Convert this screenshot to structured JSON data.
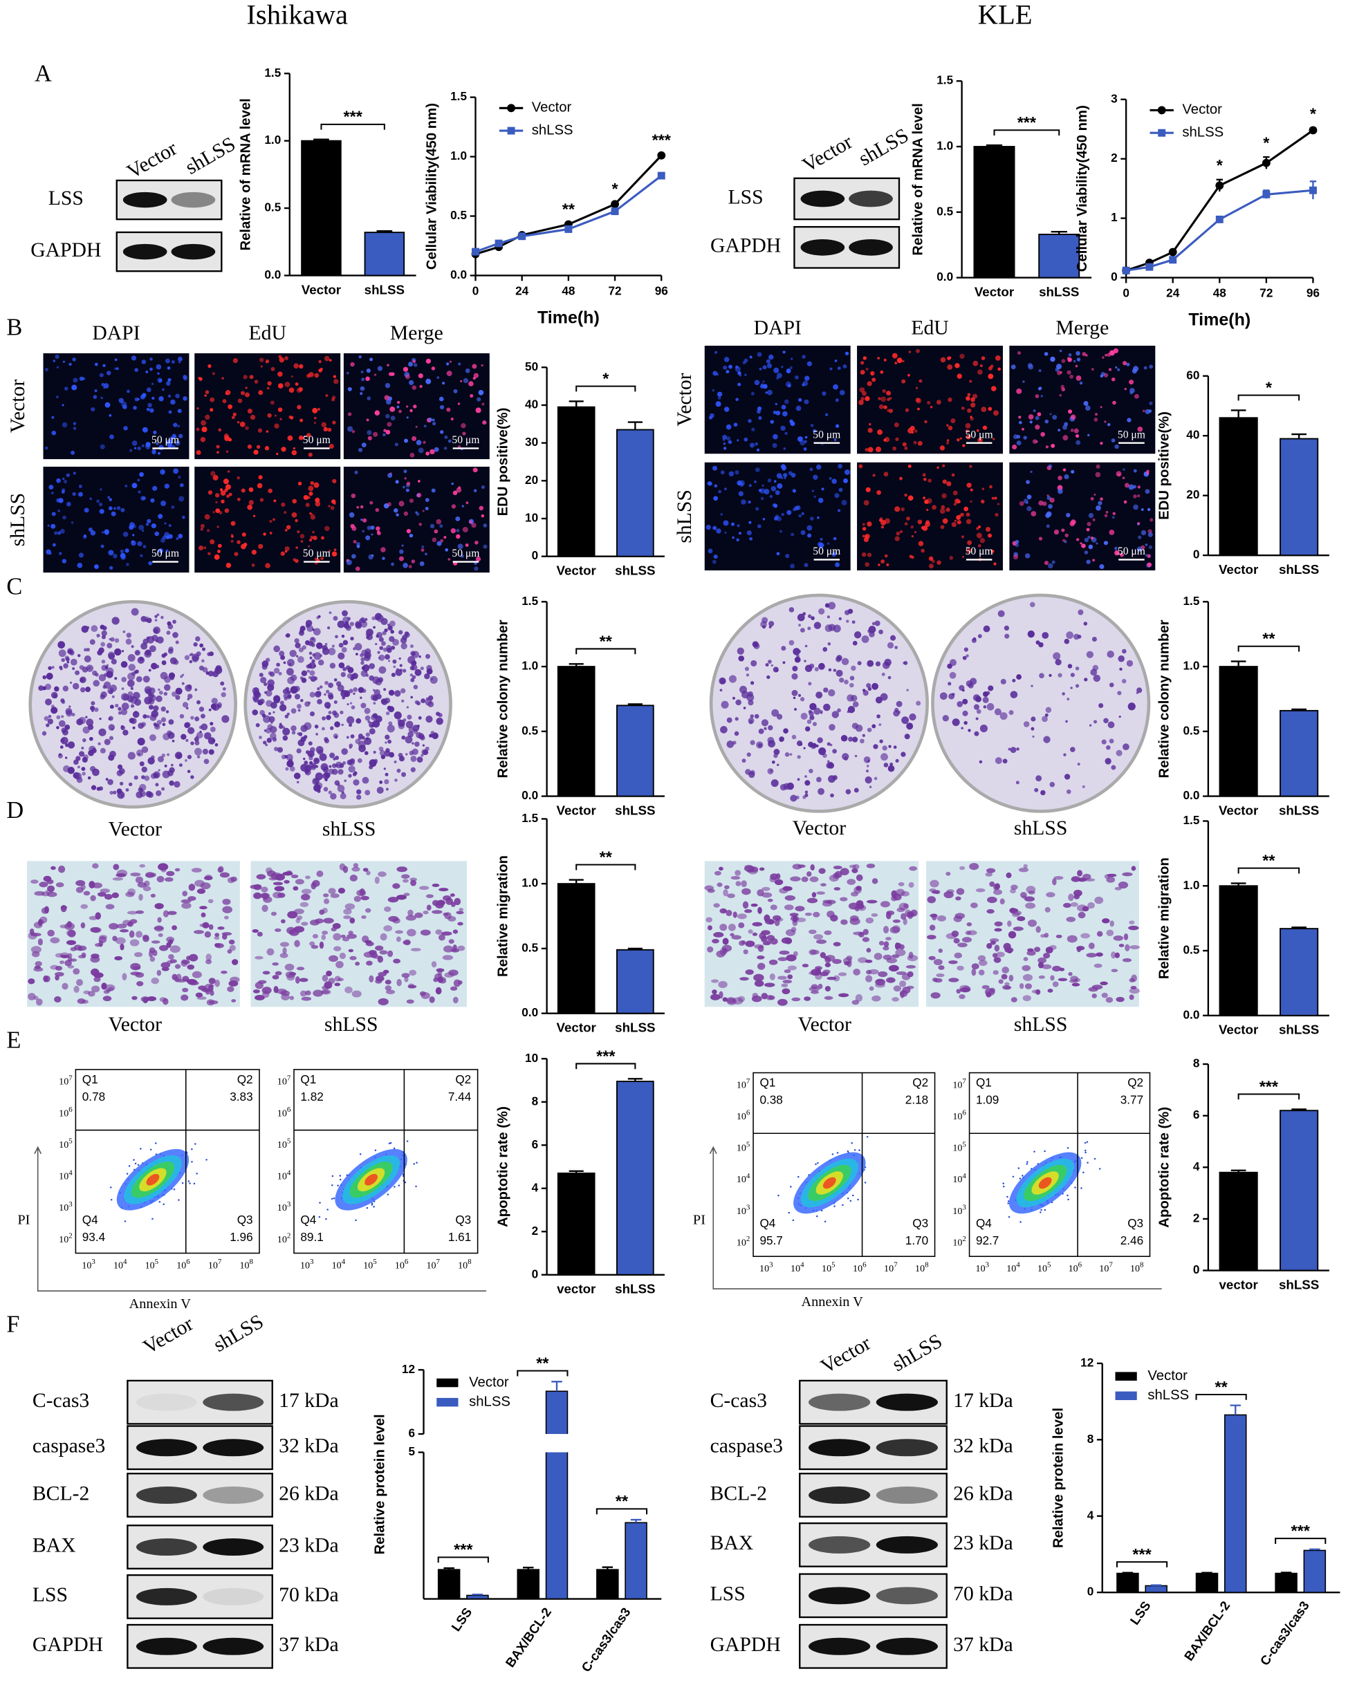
{
  "headers": [
    "Ishikawa",
    "KLE"
  ],
  "panels": [
    "A",
    "B",
    "C",
    "D",
    "E",
    "F"
  ],
  "sides": [
    {
      "blot_a": {
        "lanes": [
          "Vector",
          "shLSS"
        ],
        "rows": [
          "LSS",
          "GAPDH"
        ]
      },
      "micro": {
        "columns": [
          "DAPI",
          "EdU",
          "Merge"
        ],
        "rows": [
          "Vector",
          "shLSS"
        ],
        "scale": "50 μm"
      },
      "colony_labels": [
        "Vector",
        "shLSS"
      ],
      "migration_labels": [
        "Vector",
        "shLSS"
      ],
      "flow_axis_labels": {
        "y": "PI",
        "x": "Annexin V"
      },
      "flow": [
        {
          "quadrants": [
            {
              "name": "Q1",
              "value": 0.78
            },
            {
              "name": "Q2",
              "value": 3.83
            },
            {
              "name": "Q3",
              "value": 1.96
            },
            {
              "name": "Q4",
              "value": 93.4
            }
          ]
        },
        {
          "quadrants": [
            {
              "name": "Q1",
              "value": 1.82
            },
            {
              "name": "Q2",
              "value": 7.44
            },
            {
              "name": "Q3",
              "value": 1.61
            },
            {
              "name": "Q4",
              "value": 89.1
            }
          ]
        }
      ],
      "blot_f": {
        "lanes": [
          "Vector",
          "shLSS"
        ],
        "rows": [
          {
            "name": "C-cas3",
            "size": "17 kDa"
          },
          {
            "name": "caspase3",
            "size": "32 kDa"
          },
          {
            "name": "BCL-2",
            "size": "26 kDa"
          },
          {
            "name": "BAX",
            "size": "23 kDa"
          },
          {
            "name": "LSS",
            "size": "70 kDa"
          },
          {
            "name": "GAPDH",
            "size": "37 kDa"
          }
        ]
      }
    },
    {
      "blot_a": {
        "lanes": [
          "Vector",
          "shLSS"
        ],
        "rows": [
          "LSS",
          "GAPDH"
        ]
      },
      "micro": {
        "columns": [
          "DAPI",
          "EdU",
          "Merge"
        ],
        "rows": [
          "Vector",
          "shLSS"
        ],
        "scale": "50 μm"
      },
      "colony_labels": [
        "Vector",
        "shLSS"
      ],
      "migration_labels": [
        "Vector",
        "shLSS"
      ],
      "flow_axis_labels": {
        "y": "PI",
        "x": "Annexin V"
      },
      "flow": [
        {
          "quadrants": [
            {
              "name": "Q1",
              "value": 0.38
            },
            {
              "name": "Q2",
              "value": 2.18
            },
            {
              "name": "Q3",
              "value": 1.7,
              "label": "1.70"
            },
            {
              "name": "Q4",
              "value": 95.7
            }
          ]
        },
        {
          "quadrants": [
            {
              "name": "Q1",
              "value": 1.09
            },
            {
              "name": "Q2",
              "value": 3.77
            },
            {
              "name": "Q3",
              "value": 2.46
            },
            {
              "name": "Q4",
              "value": 92.7
            }
          ]
        }
      ],
      "blot_f": {
        "lanes": [
          "Vector",
          "shLSS"
        ],
        "rows": [
          {
            "name": "C-cas3",
            "size": "17 kDa"
          },
          {
            "name": "caspase3",
            "size": "32 kDa"
          },
          {
            "name": "BCL-2",
            "size": "26 kDa"
          },
          {
            "name": "BAX",
            "size": "23 kDa"
          },
          {
            "name": "LSS",
            "size": "70 kDa"
          },
          {
            "name": "GAPDH",
            "size": "37 kDa"
          }
        ]
      }
    }
  ],
  "flow_axis": {
    "base": "10",
    "y_exponents": [
      2,
      3,
      4,
      5,
      6,
      7
    ],
    "x_exponents": [
      3,
      4,
      5,
      6,
      7,
      8
    ]
  },
  "chart_data": [
    {
      "type": "bar",
      "ylabel": "Relative of mRNA level",
      "categories": [
        "Vector",
        "shLSS"
      ],
      "values": [
        1.0,
        0.32
      ],
      "errors": [
        0.01,
        0.01
      ],
      "colors": [
        "#000000",
        "#3a5bbf"
      ],
      "ylim": [
        0,
        1.5
      ],
      "yticks": [
        {
          "value": 0,
          "label": "0.0"
        },
        0.5,
        {
          "value": 1,
          "label": "1.0"
        },
        1.5
      ],
      "significance": "***"
    },
    {
      "type": "line",
      "ylabel": "Cellular Viability(450 nm)",
      "xlabel": "Time(h)",
      "x": [
        0,
        12,
        24,
        48,
        72,
        96
      ],
      "xlim": [
        0,
        96
      ],
      "xticks": [
        0,
        24,
        48,
        72,
        96
      ],
      "ylim": [
        0,
        1.5
      ],
      "yticks": [
        {
          "value": 0,
          "label": "0.0"
        },
        0.5,
        {
          "value": 1,
          "label": "1.0"
        },
        1.5
      ],
      "legend": "upper left",
      "series": [
        {
          "name": "Vector",
          "color": "#000000",
          "marker": "circle",
          "values": [
            0.18,
            0.24,
            0.34,
            0.43,
            0.6,
            1.01
          ],
          "errors": [
            0.01,
            0.01,
            0.01,
            0.01,
            0.01,
            0.01
          ]
        },
        {
          "name": "shLSS",
          "color": "#3a5bbf",
          "marker": "square",
          "values": [
            0.2,
            0.27,
            0.33,
            0.39,
            0.54,
            0.84
          ],
          "errors": [
            0.01,
            0.01,
            0.01,
            0.01,
            0.01,
            0.01
          ]
        }
      ],
      "annotations": [
        {
          "x": 48,
          "label": "**"
        },
        {
          "x": 72,
          "label": "*"
        },
        {
          "x": 96,
          "label": "***"
        }
      ]
    },
    {
      "type": "bar",
      "ylabel": "EDU positive(%)",
      "categories": [
        "Vector",
        "shLSS"
      ],
      "values": [
        39.5,
        33.5
      ],
      "errors": [
        1.5,
        2
      ],
      "colors": [
        "#000000",
        "#3a5bbf"
      ],
      "ylim": [
        0,
        50
      ],
      "yticks": [
        0,
        10,
        20,
        30,
        40,
        50
      ],
      "significance": "*"
    },
    {
      "type": "bar",
      "ylabel": "Relative colony number",
      "categories": [
        "Vector",
        "shLSS"
      ],
      "values": [
        1.0,
        0.7
      ],
      "errors": [
        0.02,
        0.01
      ],
      "colors": [
        "#000000",
        "#3a5bbf"
      ],
      "ylim": [
        0,
        1.5
      ],
      "yticks": [
        {
          "value": 0,
          "label": "0.0"
        },
        0.5,
        {
          "value": 1,
          "label": "1.0"
        },
        1.5
      ],
      "significance": "**"
    },
    {
      "type": "bar",
      "ylabel": "Relative migration",
      "categories": [
        "Vector",
        "shLSS"
      ],
      "values": [
        1.0,
        0.49
      ],
      "errors": [
        0.03,
        0.01
      ],
      "colors": [
        "#000000",
        "#3a5bbf"
      ],
      "ylim": [
        0,
        1.5
      ],
      "yticks": [
        {
          "value": 0,
          "label": "0.0"
        },
        0.5,
        {
          "value": 1,
          "label": "1.0"
        },
        1.5
      ],
      "significance": "**"
    },
    {
      "type": "bar",
      "ylabel": "Apoptotic rate (%)",
      "categories": [
        "vector",
        "shLSS"
      ],
      "values": [
        4.7,
        8.95
      ],
      "errors": [
        0.1,
        0.12
      ],
      "colors": [
        "#000000",
        "#3a5bbf"
      ],
      "ylim": [
        0,
        10
      ],
      "yticks": [
        0,
        2,
        4,
        6,
        8,
        10
      ],
      "significance": "***"
    },
    {
      "type": "grouped_bar",
      "ylabel": "Relative protein level",
      "categories": [
        "LSS",
        "BAX/BCL-2",
        "C-cas3/cas3"
      ],
      "ylim": [
        0,
        12
      ],
      "ybreak": [
        5,
        6
      ],
      "yticks": [
        5,
        6,
        12
      ],
      "legend": "upper left",
      "series": [
        {
          "name": "Vector",
          "color": "#000000",
          "values": [
            1,
            1,
            1
          ],
          "errors": [
            0.05,
            0.07,
            0.08
          ]
        },
        {
          "name": "shLSS",
          "color": "#3a5bbf",
          "values": [
            0.12,
            10,
            2.6
          ],
          "errors": [
            0.03,
            0.9,
            0.1
          ]
        }
      ],
      "significance": [
        "***",
        "**",
        "**"
      ]
    },
    {
      "type": "bar",
      "ylabel": "Relative of mRNA level",
      "categories": [
        "Vector",
        "shLSS"
      ],
      "values": [
        1.0,
        0.33
      ],
      "errors": [
        0.01,
        0.02
      ],
      "colors": [
        "#000000",
        "#3a5bbf"
      ],
      "ylim": [
        0,
        1.5
      ],
      "yticks": [
        {
          "value": 0,
          "label": "0.0"
        },
        0.5,
        {
          "value": 1,
          "label": "1.0"
        },
        1.5
      ],
      "significance": "***"
    },
    {
      "type": "line",
      "ylabel": "Cellular Viability(450 nm)",
      "xlabel": "Time(h)",
      "x": [
        0,
        12,
        24,
        48,
        72,
        96
      ],
      "xlim": [
        0,
        96
      ],
      "xticks": [
        0,
        24,
        48,
        72,
        96
      ],
      "ylim": [
        0,
        3
      ],
      "yticks": [
        0,
        1,
        2,
        3
      ],
      "legend": "upper left",
      "series": [
        {
          "name": "Vector",
          "color": "#000000",
          "marker": "circle",
          "values": [
            0.12,
            0.25,
            0.43,
            1.55,
            1.93,
            2.48
          ],
          "errors": [
            0.02,
            0.03,
            0.03,
            0.1,
            0.1,
            0.04
          ]
        },
        {
          "name": "shLSS",
          "color": "#3a5bbf",
          "marker": "square",
          "values": [
            0.12,
            0.18,
            0.3,
            0.98,
            1.4,
            1.47
          ],
          "errors": [
            0.02,
            0.02,
            0.02,
            0.03,
            0.07,
            0.15
          ]
        }
      ],
      "annotations": [
        {
          "x": 48,
          "label": "*"
        },
        {
          "x": 72,
          "label": "*"
        },
        {
          "x": 96,
          "label": "*"
        }
      ]
    },
    {
      "type": "bar",
      "ylabel": "EDU positive(%)",
      "categories": [
        "Vector",
        "shLSS"
      ],
      "values": [
        46,
        39
      ],
      "errors": [
        2.5,
        1.5
      ],
      "colors": [
        "#000000",
        "#3a5bbf"
      ],
      "ylim": [
        0,
        60
      ],
      "yticks": [
        0,
        20,
        40,
        60
      ],
      "significance": "*"
    },
    {
      "type": "bar",
      "ylabel": "Relative colony number",
      "categories": [
        "Vector",
        "shLSS"
      ],
      "values": [
        1.0,
        0.66
      ],
      "errors": [
        0.04,
        0.01
      ],
      "colors": [
        "#000000",
        "#3a5bbf"
      ],
      "ylim": [
        0,
        1.5
      ],
      "yticks": [
        {
          "value": 0,
          "label": "0.0"
        },
        0.5,
        {
          "value": 1,
          "label": "1.0"
        },
        1.5
      ],
      "significance": "**"
    },
    {
      "type": "bar",
      "ylabel": "Relative migration",
      "categories": [
        "Vector",
        "shLSS"
      ],
      "values": [
        1.0,
        0.67
      ],
      "errors": [
        0.02,
        0.01
      ],
      "colors": [
        "#000000",
        "#3a5bbf"
      ],
      "ylim": [
        0,
        1.5
      ],
      "yticks": [
        {
          "value": 0,
          "label": "0.0"
        },
        0.5,
        {
          "value": 1,
          "label": "1.0"
        },
        1.5
      ],
      "significance": "**"
    },
    {
      "type": "bar",
      "ylabel": "Apoptotic rate (%)",
      "categories": [
        "vector",
        "shLSS"
      ],
      "values": [
        3.8,
        6.2
      ],
      "errors": [
        0.08,
        0.05
      ],
      "colors": [
        "#000000",
        "#3a5bbf"
      ],
      "ylim": [
        0,
        8
      ],
      "yticks": [
        0,
        2,
        4,
        6,
        8
      ],
      "significance": "***"
    },
    {
      "type": "grouped_bar",
      "ylabel": "Relative protein level",
      "categories": [
        "LSS",
        "BAX/BCL-2",
        "C-cas3/cas3"
      ],
      "ylim": [
        0,
        12
      ],
      "yticks": [
        0,
        4,
        8,
        12
      ],
      "legend": "upper left",
      "series": [
        {
          "name": "Vector",
          "color": "#000000",
          "values": [
            1,
            1,
            1
          ],
          "errors": [
            0.03,
            0.03,
            0.04
          ]
        },
        {
          "name": "shLSS",
          "color": "#3a5bbf",
          "values": [
            0.35,
            9.3,
            2.2
          ],
          "errors": [
            0.03,
            0.5,
            0.06
          ]
        }
      ],
      "significance": [
        "***",
        "**",
        "***"
      ]
    }
  ]
}
